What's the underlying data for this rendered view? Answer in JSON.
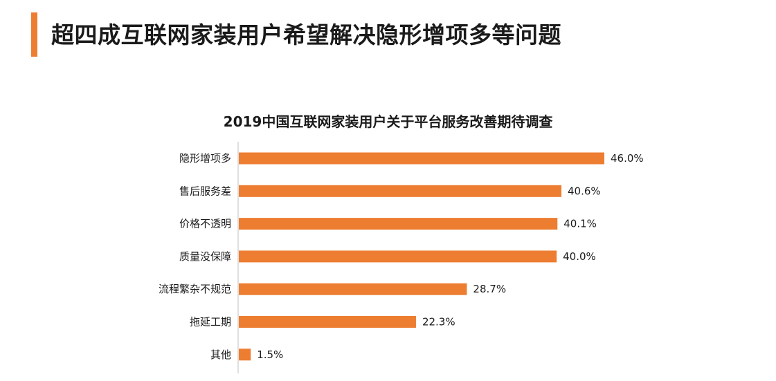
{
  "header": {
    "title": "超四成互联网家装用户希望解决隐形增项多等问题",
    "accent_color": "#ed7d31"
  },
  "chart_data": {
    "type": "bar",
    "orientation": "horizontal",
    "title": "2019中国互联网家装用户关于平台服务改善期待调查",
    "categories": [
      "隐形增项多",
      "售后服务差",
      "价格不透明",
      "质量没保障",
      "流程繁杂不规范",
      "拖延工期",
      "其他"
    ],
    "values": [
      46.0,
      40.6,
      40.1,
      40.0,
      28.7,
      22.3,
      1.5
    ],
    "value_labels": [
      "46.0%",
      "40.6%",
      "40.1%",
      "40.0%",
      "28.7%",
      "22.3%",
      "1.5%"
    ],
    "xlim": [
      0,
      46.0
    ],
    "bar_color": "#ed7d31",
    "grid": false,
    "legend": "none"
  }
}
